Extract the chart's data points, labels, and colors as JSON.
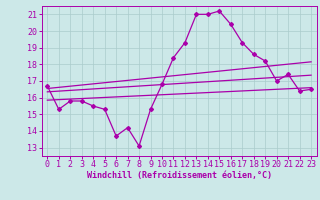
{
  "main_series_x": [
    0,
    1,
    2,
    3,
    4,
    5,
    6,
    7,
    8,
    9,
    10,
    11,
    12,
    13,
    14,
    15,
    16,
    17,
    18,
    19,
    20,
    21,
    22,
    23
  ],
  "main_series_y": [
    16.7,
    15.3,
    15.8,
    15.8,
    15.5,
    15.3,
    13.7,
    14.2,
    13.1,
    15.3,
    16.8,
    18.4,
    19.3,
    21.0,
    21.0,
    21.2,
    20.4,
    19.3,
    18.6,
    18.2,
    17.0,
    17.4,
    16.4,
    16.5
  ],
  "line1_x": [
    0,
    23
  ],
  "line1_y": [
    16.35,
    17.35
  ],
  "line2_x": [
    0,
    23
  ],
  "line2_y": [
    16.55,
    18.15
  ],
  "line3_x": [
    0,
    23
  ],
  "line3_y": [
    15.85,
    16.6
  ],
  "color": "#aa00aa",
  "bg_color": "#cce8e8",
  "grid_color": "#aacccc",
  "xlim": [
    -0.5,
    23.5
  ],
  "ylim": [
    12.5,
    21.5
  ],
  "yticks": [
    13,
    14,
    15,
    16,
    17,
    18,
    19,
    20,
    21
  ],
  "xticks": [
    0,
    1,
    2,
    3,
    4,
    5,
    6,
    7,
    8,
    9,
    10,
    11,
    12,
    13,
    14,
    15,
    16,
    17,
    18,
    19,
    20,
    21,
    22,
    23
  ],
  "xlabel": "Windchill (Refroidissement éolien,°C)",
  "xlabel_fontsize": 6.0,
  "tick_fontsize": 6.0,
  "line_width": 0.9,
  "marker": "D",
  "marker_size": 2.0
}
